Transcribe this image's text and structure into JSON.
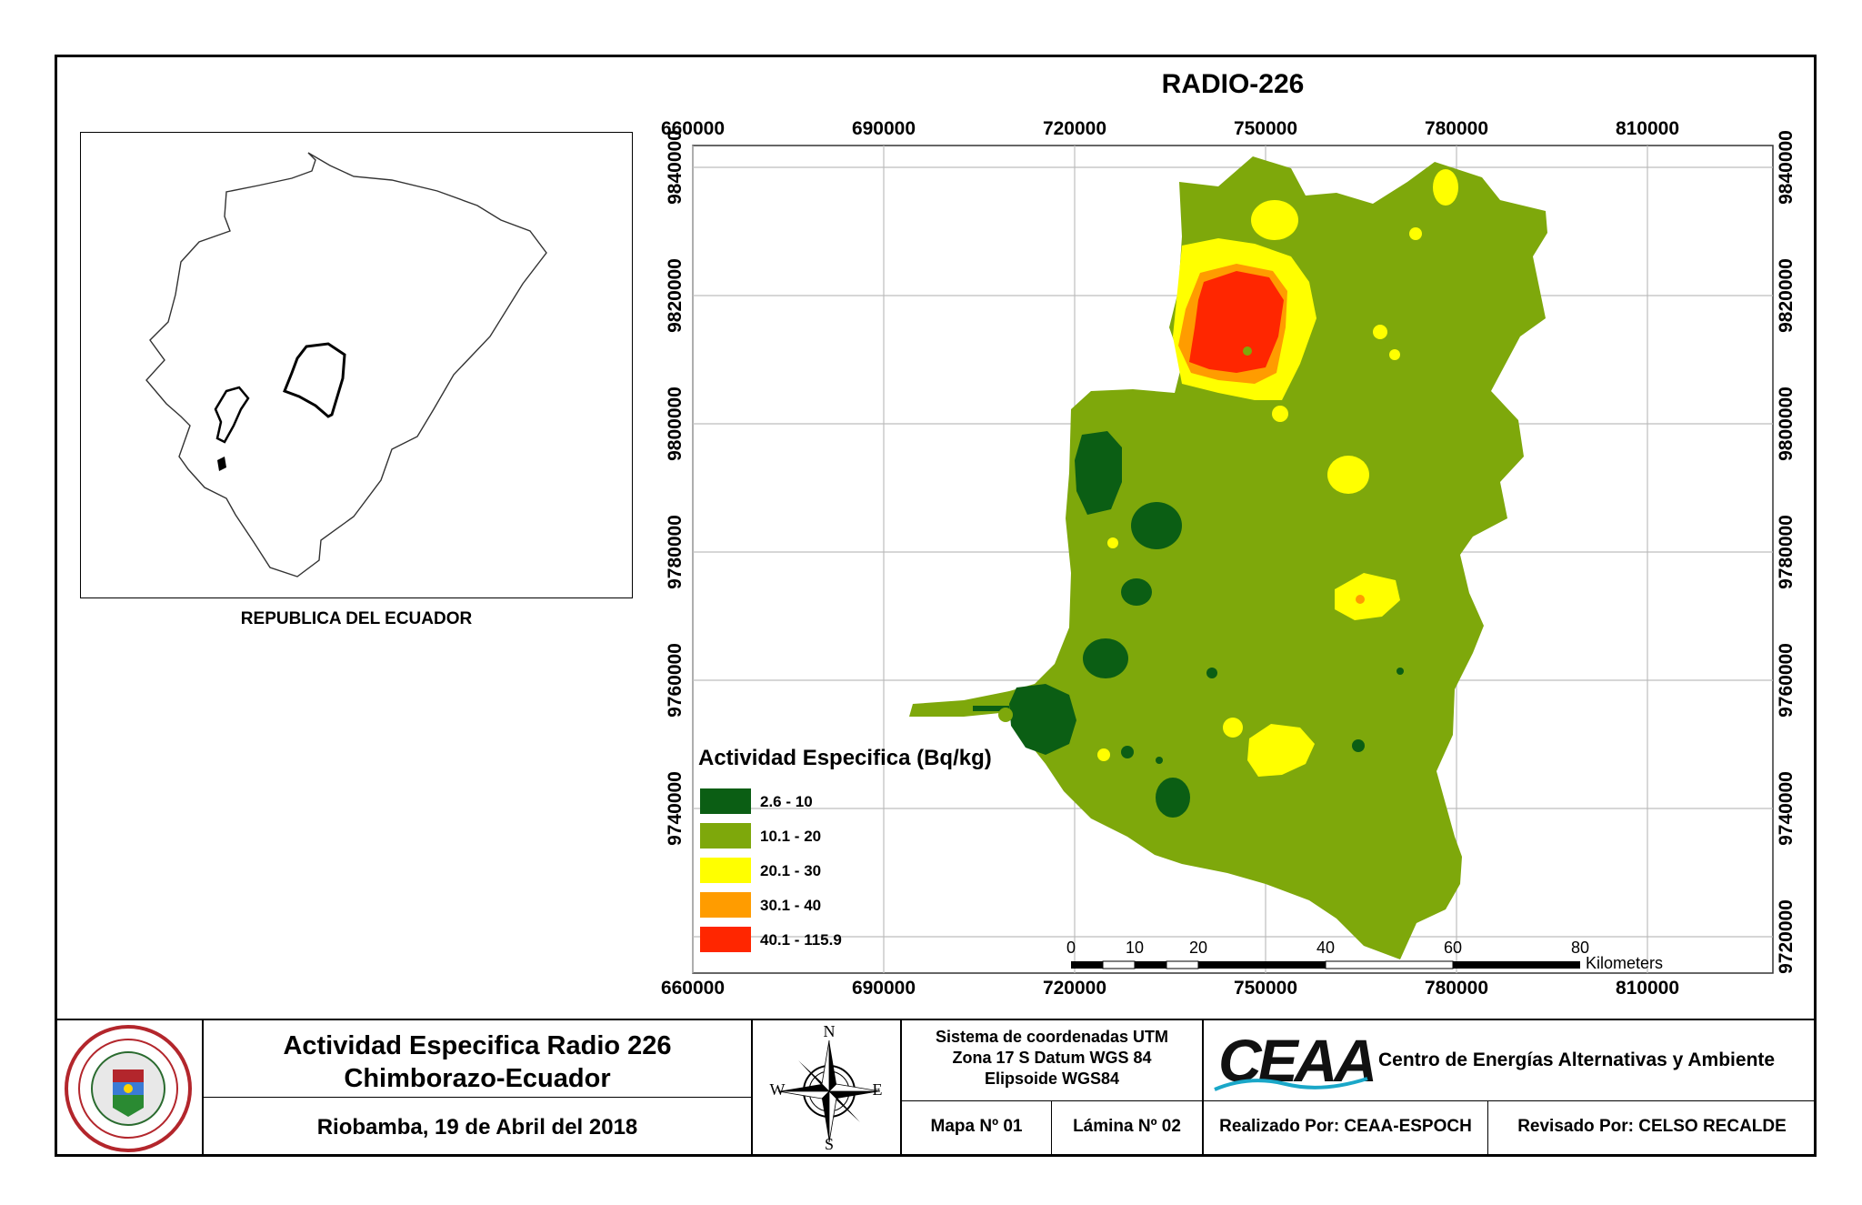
{
  "map": {
    "title": "RADIO-226",
    "x_ticks": [
      "660000",
      "690000",
      "720000",
      "750000",
      "780000",
      "810000"
    ],
    "y_ticks": [
      "9840000",
      "9820000",
      "9800000",
      "9780000",
      "9760000",
      "9740000",
      "9720000"
    ],
    "legend": {
      "title": "Actividad Especifica (Bq/kg)",
      "items": [
        {
          "label": "2.6 - 10",
          "color": "#0b5e14"
        },
        {
          "label": "10.1 - 20",
          "color": "#7ea80b"
        },
        {
          "label": "20.1 - 30",
          "color": "#ffff00"
        },
        {
          "label": "30.1 - 40",
          "color": "#ff9c00"
        },
        {
          "label": "40.1 - 115.9",
          "color": "#ff2600"
        }
      ]
    },
    "scale_bar": {
      "ticks": [
        "0",
        "10",
        "20",
        "40",
        "60",
        "80"
      ],
      "unit": "Kilometers"
    }
  },
  "inset": {
    "caption": "REPUBLICA DEL ECUADOR"
  },
  "footer": {
    "title_line1": "Actividad Especifica Radio 226",
    "title_line2": "Chimborazo-Ecuador",
    "date": "Riobamba, 19 de Abril del 2018",
    "compass": {
      "n": "N",
      "s": "S",
      "e": "E",
      "w": "W"
    },
    "crs_line1": "Sistema de coordenadas UTM",
    "crs_line2": "Zona 17 S Datum WGS 84",
    "crs_line3": "Elipsoide WGS84",
    "map_no": "Mapa Nº 01",
    "sheet_no": "Lámina Nº 02",
    "org_logo": "CEAA",
    "org_name": "Centro de Energías Alternativas y Ambiente",
    "made_by": "Realizado Por: CEAA-ESPOCH",
    "reviewed_by": "Revisado Por: CELSO RECALDE"
  }
}
